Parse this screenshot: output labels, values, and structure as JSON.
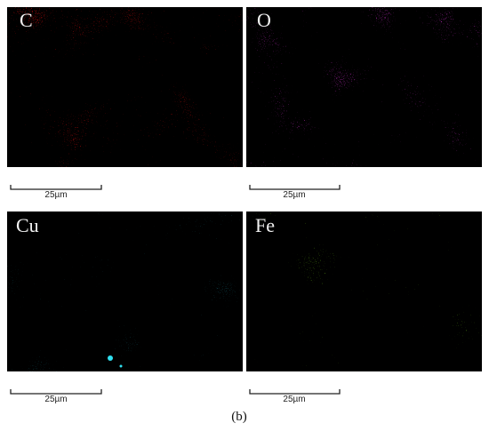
{
  "panels": [
    {
      "label": "C",
      "scale_label": "25µm"
    },
    {
      "label": "O",
      "scale_label": "25µm"
    },
    {
      "label": "Cu",
      "scale_label": "25µm"
    },
    {
      "label": "Fe",
      "scale_label": "25µm"
    }
  ],
  "caption": "(b)"
}
